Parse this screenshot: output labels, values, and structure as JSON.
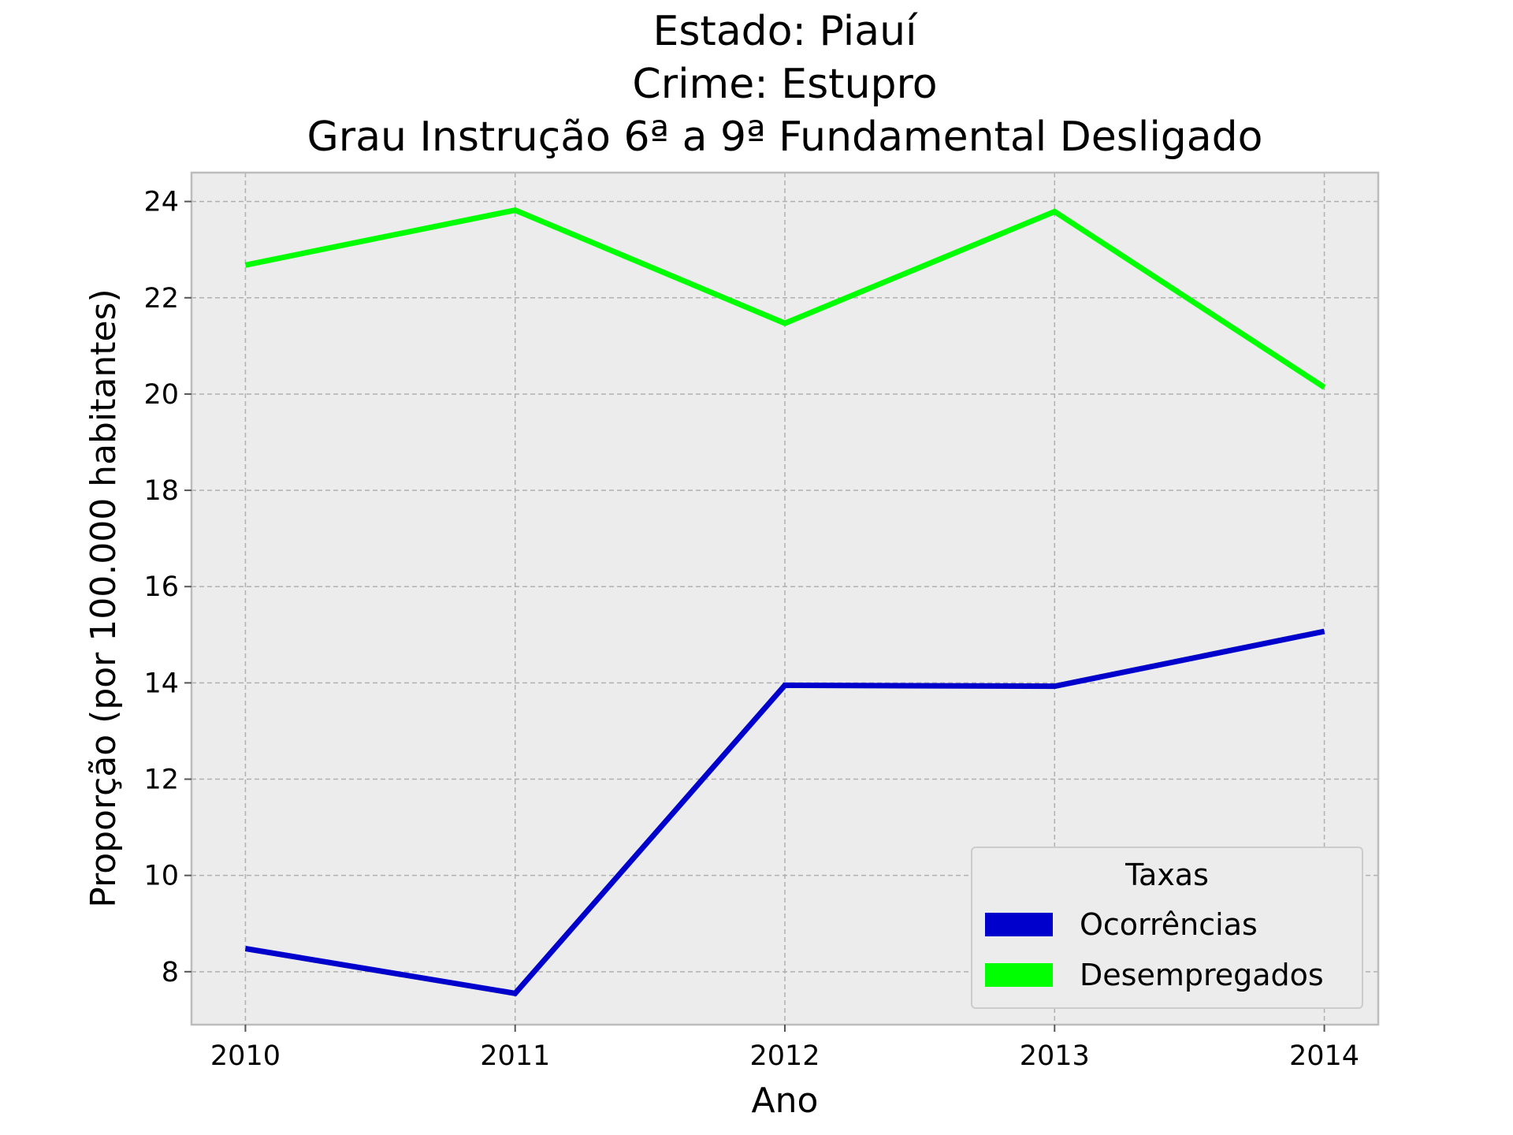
{
  "chart_data": {
    "type": "line",
    "title": [
      "Estado: Piauí",
      "Crime: Estupro",
      "Grau Instrução  6ª a 9ª Fundamental   Desligado"
    ],
    "xlabel": "Ano",
    "ylabel": "Proporção (por 100.000 habitantes)",
    "x": [
      "2010",
      "2011",
      "2012",
      "2013",
      "2014"
    ],
    "xlim": [
      2009.8,
      2014.2
    ],
    "ylim": [
      6.9,
      24.6
    ],
    "yticks": [
      8,
      10,
      12,
      14,
      16,
      18,
      20,
      22,
      24
    ],
    "grid": true,
    "background": "#ececec",
    "legend": {
      "title": "Taxas",
      "placement": "lower-right"
    },
    "series": [
      {
        "name": "Ocorrências",
        "color": "#0000cc",
        "values": [
          8.48,
          7.55,
          13.95,
          13.93,
          15.07
        ]
      },
      {
        "name": "Desempregados",
        "color": "#00ff00",
        "values": [
          22.68,
          23.82,
          21.47,
          23.79,
          20.14
        ]
      }
    ]
  }
}
